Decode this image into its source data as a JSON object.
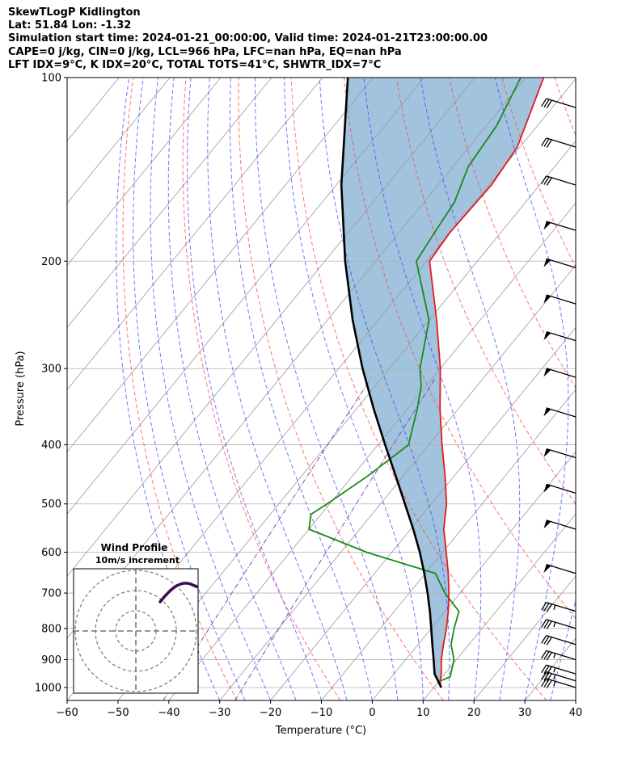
{
  "header": {
    "title": "SkewTLogP Kidlington",
    "location": "Lat: 51.84   Lon: -1.32",
    "times": "Simulation start time: 2024-01-21_00:00:00, Valid time: 2024-01-21T23:00:00.00",
    "indices1": "CAPE=0 j/kg, CIN=0 j/kg, LCL=966 hPa, LFC=nan hPa, EQ=nan hPa",
    "indices2": "LFT IDX=9°C, K IDX=20°C, TOTAL TOTS=41°C, SHWTR_IDX=7°C"
  },
  "chart_data": {
    "type": "line",
    "xlabel": "Temperature (°C)",
    "ylabel": "Pressure (hPa)",
    "xlim": [
      -60,
      40
    ],
    "ylim": [
      1050,
      100
    ],
    "y_scale": "log",
    "x_ticks": [
      "−60",
      "−50",
      "−40",
      "−30",
      "−20",
      "−10",
      "0",
      "10",
      "20",
      "30",
      "40"
    ],
    "y_ticks": [
      "100",
      "200",
      "300",
      "400",
      "500",
      "600",
      "700",
      "800",
      "900",
      "1000"
    ],
    "grid": true,
    "series": [
      {
        "role": "temperature",
        "color": "#e31a1c",
        "pressure": [
          1000,
          975,
          950,
          900,
          850,
          800,
          750,
          700,
          650,
          600,
          550,
          500,
          450,
          400,
          350,
          300,
          250,
          200,
          180,
          150,
          130,
          100
        ],
        "temperature": [
          11.4,
          10.2,
          9.3,
          7.0,
          5.0,
          3.0,
          0.6,
          -2.2,
          -5.5,
          -9.3,
          -13.5,
          -17.0,
          -21.8,
          -27.4,
          -33.5,
          -40.0,
          -48.5,
          -59.4,
          -60.0,
          -59.5,
          -60.5,
          -66.5
        ]
      },
      {
        "role": "dewpoint",
        "color": "#1a8a1a",
        "pressure": [
          975,
          960,
          900,
          850,
          800,
          750,
          700,
          650,
          600,
          550,
          520,
          500,
          450,
          400,
          350,
          320,
          300,
          250,
          200,
          180,
          160,
          140,
          120,
          100
        ],
        "temperature": [
          10.3,
          11.5,
          9.5,
          6.5,
          4.5,
          2.7,
          -3.0,
          -8.0,
          -25.0,
          -40.0,
          -42.0,
          -40.5,
          -37.0,
          -34.0,
          -38.0,
          -41.0,
          -44.0,
          -50.0,
          -62.0,
          -63.0,
          -64.0,
          -67.0,
          -68.0,
          -71.0
        ]
      },
      {
        "role": "parcel",
        "color": "#000000",
        "pressure": [
          1000,
          950,
          900,
          850,
          800,
          750,
          700,
          650,
          600,
          550,
          500,
          450,
          400,
          350,
          300,
          250,
          200,
          150,
          100
        ],
        "temperature": [
          11.5,
          8.0,
          5.5,
          2.8,
          0.0,
          -3.0,
          -6.4,
          -10.2,
          -14.5,
          -19.5,
          -25.2,
          -31.5,
          -38.6,
          -46.5,
          -55.3,
          -65.0,
          -76.0,
          -89.0,
          -105.0
        ]
      }
    ],
    "wind_barbs": [
      {
        "pressure": 1000,
        "speed_kt": 35
      },
      {
        "pressure": 975,
        "speed_kt": 35
      },
      {
        "pressure": 950,
        "speed_kt": 35
      },
      {
        "pressure": 900,
        "speed_kt": 35
      },
      {
        "pressure": 850,
        "speed_kt": 30
      },
      {
        "pressure": 800,
        "speed_kt": 35
      },
      {
        "pressure": 750,
        "speed_kt": 35
      },
      {
        "pressure": 650,
        "speed_kt": 50
      },
      {
        "pressure": 550,
        "speed_kt": 50
      },
      {
        "pressure": 480,
        "speed_kt": 50
      },
      {
        "pressure": 420,
        "speed_kt": 50
      },
      {
        "pressure": 360,
        "speed_kt": 50
      },
      {
        "pressure": 310,
        "speed_kt": 50
      },
      {
        "pressure": 270,
        "speed_kt": 50
      },
      {
        "pressure": 235,
        "speed_kt": 50
      },
      {
        "pressure": 205,
        "speed_kt": 50
      },
      {
        "pressure": 178,
        "speed_kt": 50
      },
      {
        "pressure": 150,
        "speed_kt": 30
      },
      {
        "pressure": 130,
        "speed_kt": 30
      },
      {
        "pressure": 112,
        "speed_kt": 30
      }
    ],
    "inset": {
      "title": "Wind Profile",
      "subtitle": "10m/s increment",
      "hodograph_color": "#3b0f4f"
    },
    "colors": {
      "cape_fill": "#7aaad0",
      "dry_adiabat": "#ff4444",
      "moist_adiabat": "#3a3aff",
      "mixing_ratio": "#8844bb",
      "isotherm": "#999999",
      "grid": "#b0b0b0"
    }
  }
}
